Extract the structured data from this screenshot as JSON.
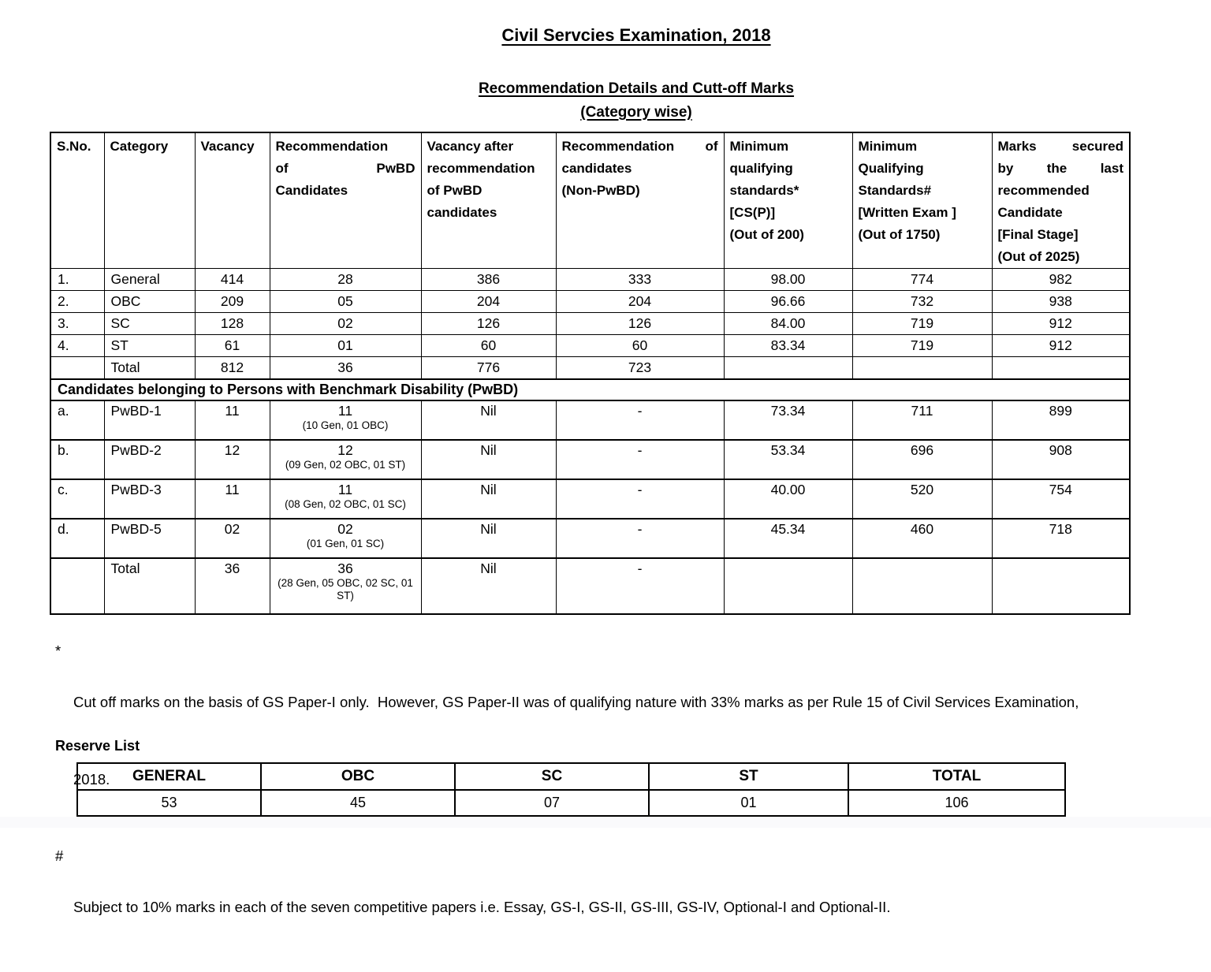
{
  "titles": {
    "main": "Civil Servcies Examination, 2018",
    "sub1": "Recommendation Details and Cutt-off Marks",
    "sub2": "(Category wise)"
  },
  "main_table": {
    "columns": [
      {
        "key": "sno",
        "align": "left",
        "lines": [
          [
            "S.No."
          ]
        ]
      },
      {
        "key": "category",
        "align": "left",
        "lines": [
          [
            "Category"
          ]
        ]
      },
      {
        "key": "vacancy",
        "align": "center",
        "lines": [
          [
            "Vacancy"
          ]
        ]
      },
      {
        "key": "rec_pwbd",
        "align": "center",
        "lines": [
          [
            "Recommendation"
          ],
          [
            "of",
            "PwBD"
          ],
          [
            "Candidates"
          ]
        ]
      },
      {
        "key": "vac_after",
        "align": "center",
        "lines": [
          [
            "Vacancy after"
          ],
          [
            "recommendation"
          ],
          [
            "of PwBD"
          ],
          [
            "candidates"
          ]
        ]
      },
      {
        "key": "rec_non",
        "align": "center",
        "lines": [
          [
            "Recommendation",
            "of"
          ],
          [
            "candidates"
          ],
          [
            "(Non-PwBD)"
          ]
        ]
      },
      {
        "key": "min_csp",
        "align": "center",
        "lines": [
          [
            "Minimum"
          ],
          [
            "qualifying"
          ],
          [
            "standards*"
          ],
          [
            "[CS(P)]"
          ],
          [
            "(Out of 200)"
          ]
        ]
      },
      {
        "key": "min_written",
        "align": "center",
        "lines": [
          [
            "Minimum"
          ],
          [
            "Qualifying"
          ],
          [
            "Standards#"
          ],
          [
            "[Written Exam ]"
          ],
          [
            "(Out of 1750)"
          ]
        ]
      },
      {
        "key": "final",
        "align": "center",
        "lines": [
          [
            "Marks",
            "secured"
          ],
          [
            "by",
            "the",
            "last"
          ],
          [
            "recommended"
          ],
          [
            "Candidate"
          ],
          [
            "[Final Stage]"
          ],
          [
            "(Out of 2025)"
          ]
        ]
      }
    ],
    "rows": [
      {
        "sno": "1.",
        "category": "General",
        "vacancy": "414",
        "rec_pwbd": "28",
        "vac_after": "386",
        "rec_non": "333",
        "min_csp": "98.00",
        "min_written": "774",
        "final": "982"
      },
      {
        "sno": "2.",
        "category": "OBC",
        "vacancy": "209",
        "rec_pwbd": "05",
        "vac_after": "204",
        "rec_non": "204",
        "min_csp": "96.66",
        "min_written": "732",
        "final": "938"
      },
      {
        "sno": "3.",
        "category": "SC",
        "vacancy": "128",
        "rec_pwbd": "02",
        "vac_after": "126",
        "rec_non": "126",
        "min_csp": "84.00",
        "min_written": "719",
        "final": "912"
      },
      {
        "sno": "4.",
        "category": "ST",
        "vacancy": "61",
        "rec_pwbd": "01",
        "vac_after": "60",
        "rec_non": "60",
        "min_csp": "83.34",
        "min_written": "719",
        "final": "912"
      },
      {
        "sno": "",
        "category": "Total",
        "vacancy": "812",
        "rec_pwbd": "36",
        "vac_after": "776",
        "rec_non": "723",
        "min_csp": "",
        "min_written": "",
        "final": ""
      }
    ],
    "section_label": "Candidates belonging to Persons with Benchmark Disability (PwBD)",
    "pwbd_rows": [
      {
        "sno": "a.",
        "category": "PwBD-1",
        "vacancy": "11",
        "rec_pwbd": "11",
        "rec_pwbd_sub": "(10 Gen, 01 OBC)",
        "vac_after": "Nil",
        "rec_non": "-",
        "min_csp": "73.34",
        "min_written": "711",
        "final": "899"
      },
      {
        "sno": "b.",
        "category": "PwBD-2",
        "vacancy": "12",
        "rec_pwbd": "12",
        "rec_pwbd_sub": "(09 Gen, 02 OBC, 01 ST)",
        "vac_after": "Nil",
        "rec_non": "-",
        "min_csp": "53.34",
        "min_written": "696",
        "final": "908"
      },
      {
        "sno": "c.",
        "category": "PwBD-3",
        "vacancy": "11",
        "rec_pwbd": "11",
        "rec_pwbd_sub": "(08 Gen, 02 OBC, 01 SC)",
        "vac_after": "Nil",
        "rec_non": "-",
        "min_csp": "40.00",
        "min_written": "520",
        "final": "754"
      },
      {
        "sno": "d.",
        "category": "PwBD-5",
        "vacancy": "02",
        "rec_pwbd": "02",
        "rec_pwbd_sub": "(01 Gen, 01 SC)",
        "vac_after": "Nil",
        "rec_non": "-",
        "min_csp": "45.34",
        "min_written": "460",
        "final": "718"
      },
      {
        "sno": "",
        "category": "Total",
        "vacancy": "36",
        "rec_pwbd": "36",
        "rec_pwbd_sub": "(28 Gen, 05 OBC, 02 SC, 01 ST)",
        "vac_after": "Nil",
        "rec_non": "-",
        "min_csp": "",
        "min_written": "",
        "final": ""
      }
    ]
  },
  "footnotes": [
    {
      "marker": "*",
      "lines": [
        "Cut off marks on the basis of GS Paper-I only.  However, GS Paper-II was of qualifying nature with 33% marks as per Rule 15 of Civil Services Examination,",
        "2018."
      ]
    },
    {
      "marker": "#",
      "lines": [
        "Subject to 10% marks in each of the seven competitive papers i.e. Essay, GS-I, GS-II, GS-III, GS-IV, Optional-I and Optional-II."
      ]
    }
  ],
  "reserve": {
    "label": "Reserve List",
    "headers": [
      "GENERAL",
      "OBC",
      "SC",
      "ST",
      "TOTAL"
    ],
    "values": [
      "53",
      "45",
      "07",
      "01",
      "106"
    ]
  }
}
